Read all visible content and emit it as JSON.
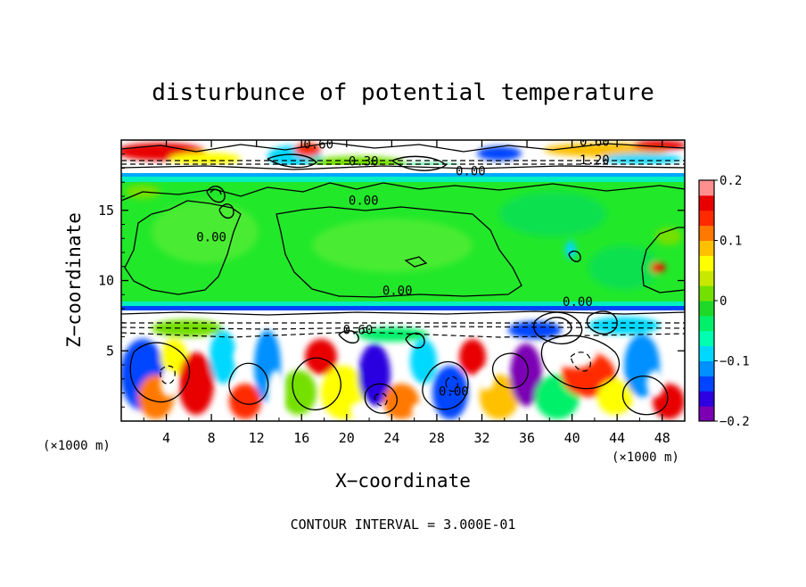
{
  "chart_data": {
    "type": "heatmap",
    "title": "disturbunce of potential temperature",
    "xlabel": "X−coordinate",
    "ylabel": "Z−coordinate",
    "x_unit": "(×1000 m)",
    "y_unit": "(×1000 m)",
    "xlim": [
      0,
      50
    ],
    "ylim": [
      0,
      20
    ],
    "x_ticks": [
      "4",
      "8",
      "12",
      "16",
      "20",
      "24",
      "28",
      "32",
      "36",
      "40",
      "44",
      "48"
    ],
    "y_ticks": [
      "5",
      "10",
      "15"
    ],
    "colorbar": {
      "range": [
        -0.2,
        0.2
      ],
      "ticks": [
        "0.2",
        "0.1",
        "0",
        "−0.1",
        "−0.2"
      ],
      "colors": [
        "#7b00b4",
        "#2c00e0",
        "#0044ff",
        "#0090ff",
        "#00d8ff",
        "#00ffb0",
        "#00f06a",
        "#1fd928",
        "#74e000",
        "#c8e800",
        "#ffff00",
        "#ffc000",
        "#ff7800",
        "#ff2a00",
        "#e80000",
        "#ff8f8f"
      ]
    },
    "contour_labels": [
      {
        "text": "0.60",
        "x": 17.5,
        "z": 19.4
      },
      {
        "text": "0.30",
        "x": 21.5,
        "z": 18.2
      },
      {
        "text": "0.60",
        "x": 42.0,
        "z": 19.6
      },
      {
        "text": "1.20",
        "x": 42.0,
        "z": 18.3
      },
      {
        "text": "0.00",
        "x": 31.0,
        "z": 17.5
      },
      {
        "text": "0.00",
        "x": 21.5,
        "z": 15.4
      },
      {
        "text": "0.00",
        "x": 8.0,
        "z": 12.8
      },
      {
        "text": "0.00",
        "x": 24.5,
        "z": 9.0
      },
      {
        "text": "0.00",
        "x": 40.5,
        "z": 8.2
      },
      {
        "text": "0.60",
        "x": 21.0,
        "z": 6.2
      },
      {
        "text": "0.00",
        "x": 29.5,
        "z": 1.8
      }
    ],
    "note": "CONTOUR INTERVAL = 3.000E-01"
  }
}
